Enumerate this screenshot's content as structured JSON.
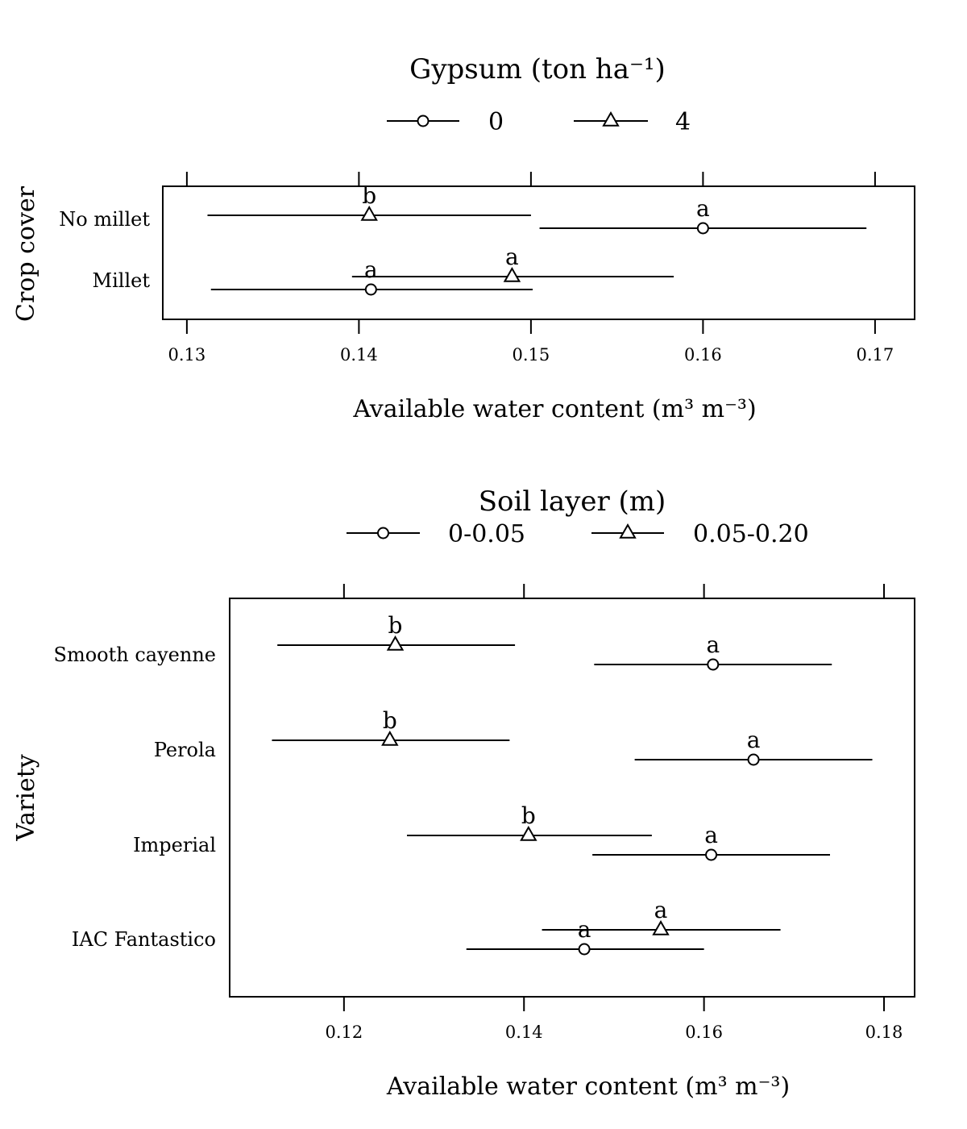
{
  "chart_data": [
    {
      "type": "dot-interval",
      "title": "Gypsum (ton ha⁻¹)",
      "ylabel": "Crop cover",
      "xlabel": "Available water content (m³ m⁻³)",
      "xlim": [
        0.1286,
        0.1723
      ],
      "xticks": [
        0.13,
        0.14,
        0.15,
        0.16,
        0.17
      ],
      "xtick_labels": [
        "0.13",
        "0.14",
        "0.15",
        "0.16",
        "0.17"
      ],
      "categories": [
        "No millet",
        "Millet"
      ],
      "legend": {
        "placement": "top",
        "entries": [
          {
            "label": "0",
            "marker": "circle"
          },
          {
            "label": "4",
            "marker": "triangle"
          }
        ]
      },
      "series": [
        {
          "name": "0",
          "marker": "circle",
          "points": [
            {
              "category": "No millet",
              "value": 0.16,
              "lower": 0.1505,
              "upper": 0.1695,
              "letter": "a"
            },
            {
              "category": "Millet",
              "value": 0.1407,
              "lower": 0.1314,
              "upper": 0.1501,
              "letter": "a"
            }
          ]
        },
        {
          "name": "4",
          "marker": "triangle",
          "points": [
            {
              "category": "No millet",
              "value": 0.1406,
              "lower": 0.1312,
              "upper": 0.15,
              "letter": "b"
            },
            {
              "category": "Millet",
              "value": 0.1489,
              "lower": 0.1396,
              "upper": 0.1583,
              "letter": "a"
            }
          ]
        }
      ]
    },
    {
      "type": "dot-interval",
      "title": "Soil layer (m)",
      "ylabel": "Variety",
      "xlabel": "Available water content (m³ m⁻³)",
      "xlim": [
        0.1073,
        0.1834
      ],
      "xticks": [
        0.12,
        0.14,
        0.16,
        0.18
      ],
      "xtick_labels": [
        "0.12",
        "0.14",
        "0.16",
        "0.18"
      ],
      "categories": [
        "Smooth cayenne",
        "Perola",
        "Imperial",
        "IAC Fantastico"
      ],
      "legend": {
        "placement": "top",
        "entries": [
          {
            "label": "0-0.05",
            "marker": "circle"
          },
          {
            "label": "0.05-0.20",
            "marker": "triangle"
          }
        ]
      },
      "series": [
        {
          "name": "0-0.05",
          "marker": "circle",
          "points": [
            {
              "category": "Smooth cayenne",
              "value": 0.161,
              "lower": 0.1478,
              "upper": 0.1742,
              "letter": "a"
            },
            {
              "category": "Perola",
              "value": 0.1655,
              "lower": 0.1523,
              "upper": 0.1787,
              "letter": "a"
            },
            {
              "category": "Imperial",
              "value": 0.1608,
              "lower": 0.1476,
              "upper": 0.174,
              "letter": "a"
            },
            {
              "category": "IAC Fantastico",
              "value": 0.1467,
              "lower": 0.1336,
              "upper": 0.16,
              "letter": "a"
            }
          ]
        },
        {
          "name": "0.05-0.20",
          "marker": "triangle",
          "points": [
            {
              "category": "Smooth cayenne",
              "value": 0.1257,
              "lower": 0.1126,
              "upper": 0.139,
              "letter": "b"
            },
            {
              "category": "Perola",
              "value": 0.1251,
              "lower": 0.112,
              "upper": 0.1384,
              "letter": "b"
            },
            {
              "category": "Imperial",
              "value": 0.1405,
              "lower": 0.127,
              "upper": 0.1542,
              "letter": "b"
            },
            {
              "category": "IAC Fantastico",
              "value": 0.1552,
              "lower": 0.142,
              "upper": 0.1685,
              "letter": "a"
            }
          ]
        }
      ]
    }
  ]
}
